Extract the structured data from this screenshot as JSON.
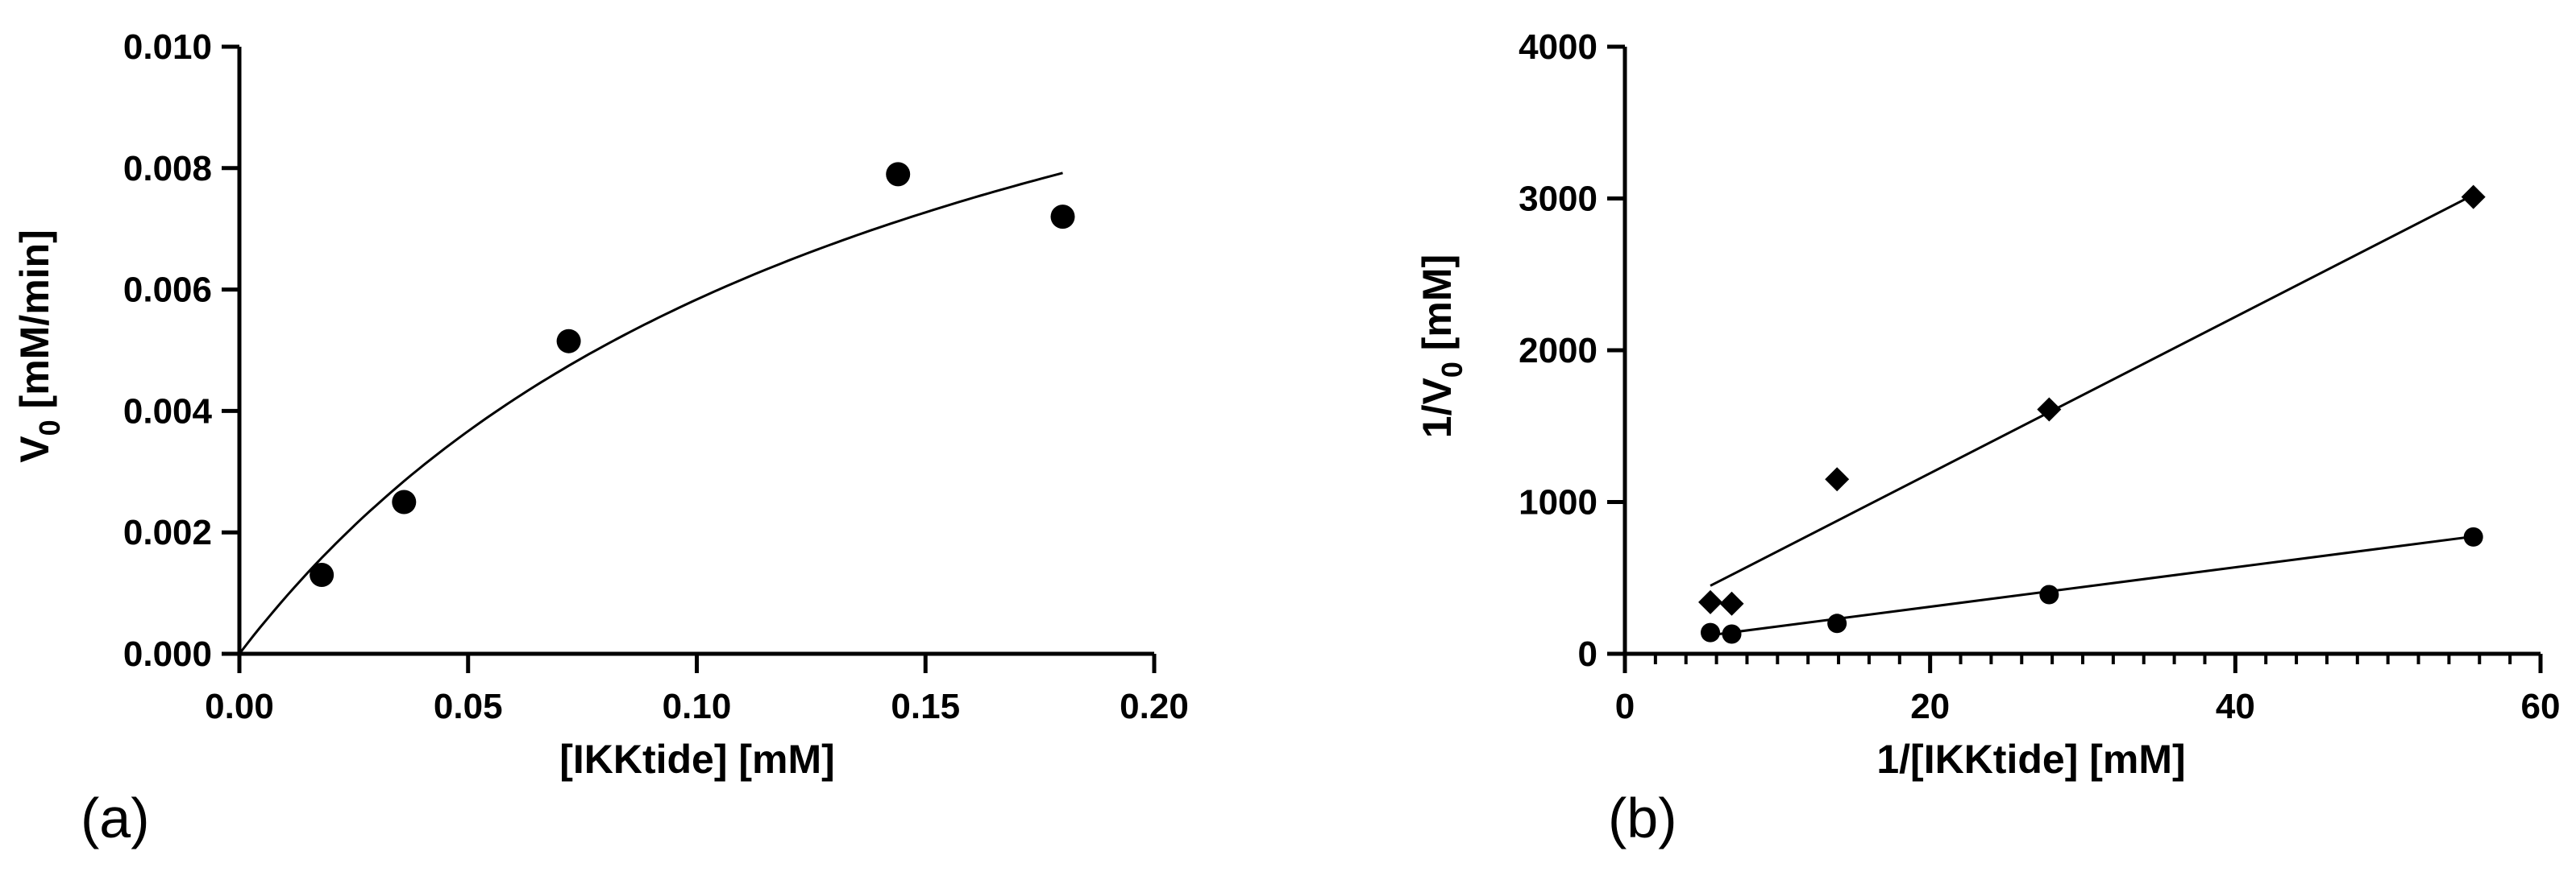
{
  "chart_data": [
    {
      "panel": "(a)",
      "type": "scatter",
      "xlabel": "[IKKtide] [mM]",
      "ylabel_main": "V",
      "ylabel_sub": "0",
      "ylabel_rest": " [mM/min]",
      "xlim": [
        0,
        0.2
      ],
      "ylim": [
        0,
        0.01
      ],
      "xticks": [
        "0.00",
        "0.05",
        "0.10",
        "0.15",
        "0.20"
      ],
      "yticks": [
        "0.000",
        "0.002",
        "0.004",
        "0.006",
        "0.008",
        "0.010"
      ],
      "series": [
        {
          "marker": "circle",
          "x": [
            0.018,
            0.036,
            0.072,
            0.144,
            0.18
          ],
          "y": [
            0.0013,
            0.0025,
            0.00515,
            0.0079,
            0.0072
          ]
        }
      ],
      "fit": {
        "type": "michaelis-menten",
        "vmax": 0.0143,
        "km": 0.145,
        "x_range": [
          0,
          0.18
        ]
      }
    },
    {
      "panel": "(b)",
      "type": "scatter",
      "xlabel": "1/[IKKtide] [mM]",
      "ylabel_main": "1/V",
      "ylabel_sub": "0",
      "ylabel_rest": " [mM]",
      "xlim": [
        0,
        60
      ],
      "ylim": [
        0,
        4000
      ],
      "xticks": [
        "0",
        "20",
        "40",
        "60"
      ],
      "yticks": [
        "0",
        "1000",
        "2000",
        "3000",
        "4000"
      ],
      "series": [
        {
          "marker": "diamond",
          "x": [
            5.6,
            7.0,
            13.9,
            27.8,
            55.6
          ],
          "y": [
            340,
            330,
            1150,
            1610,
            3010
          ],
          "fit": {
            "slope": 51.5,
            "intercept": 160,
            "x_range": [
              5.6,
              55.6
            ]
          }
        },
        {
          "marker": "circle",
          "x": [
            5.6,
            7.0,
            13.9,
            27.8,
            55.6
          ],
          "y": [
            140,
            130,
            200,
            390,
            770
          ],
          "fit": {
            "slope": 13.0,
            "intercept": 50,
            "x_range": [
              5.6,
              55.6
            ]
          }
        }
      ]
    }
  ]
}
